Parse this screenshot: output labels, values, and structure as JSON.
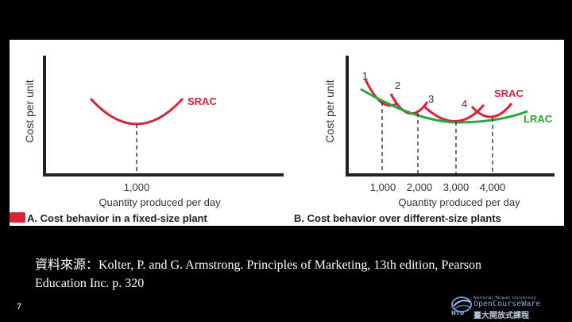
{
  "chart_data": [
    {
      "type": "line",
      "panel_label": "A. Cost behavior in a fixed-size plant",
      "ylabel": "Cost per unit",
      "xlabel": "Quantity produced per day",
      "x_ticks": [
        "1,000"
      ],
      "series": [
        {
          "name": "SRAC",
          "color": "#d8243a",
          "x": [
            -1.0,
            -0.5,
            0,
            0.5,
            1.0
          ],
          "y": [
            1.0,
            0.25,
            0,
            0.25,
            1.0
          ]
        }
      ]
    },
    {
      "type": "line",
      "panel_label": "B. Cost behavior over different-size plants",
      "ylabel": "Cost per unit",
      "xlabel": "Quantity produced per day",
      "x_ticks": [
        "1,000",
        "2,000",
        "3,000",
        "4,000"
      ],
      "curve_labels": [
        "1",
        "2",
        "3",
        "4"
      ],
      "series": [
        {
          "name": "SRAC",
          "color": "#d8243a",
          "curves": [
            {
              "label": "1",
              "x_min": 1000,
              "y_min": 2.2
            },
            {
              "label": "2",
              "x_min": 2000,
              "y_min": 1.6
            },
            {
              "label": "3",
              "x_min": 3000,
              "y_min": 1.2
            },
            {
              "label": "4",
              "x_min": 4000,
              "y_min": 1.3
            }
          ]
        },
        {
          "name": "LRAC",
          "color": "#2aa33a",
          "x": [
            0,
            1000,
            2000,
            3000,
            4000,
            5000
          ],
          "y": [
            3.2,
            2.0,
            1.4,
            1.0,
            1.1,
            1.6
          ]
        }
      ]
    }
  ],
  "badge_text": "",
  "caption": {
    "line1": "資料來源：Kolter, P. and G. Armstrong. Principles of Marketing, 13th edition, Pearson",
    "line2": "Education Inc. p. 320"
  },
  "page_number": "7",
  "logo": {
    "line1": "National Taiwan University",
    "line2": "OpenCourseWare",
    "line3": "臺大開放式課程",
    "short": "NTU"
  },
  "colors": {
    "srac": "#d8243a",
    "lrac": "#2aa33a",
    "badge": "#d8243a"
  }
}
